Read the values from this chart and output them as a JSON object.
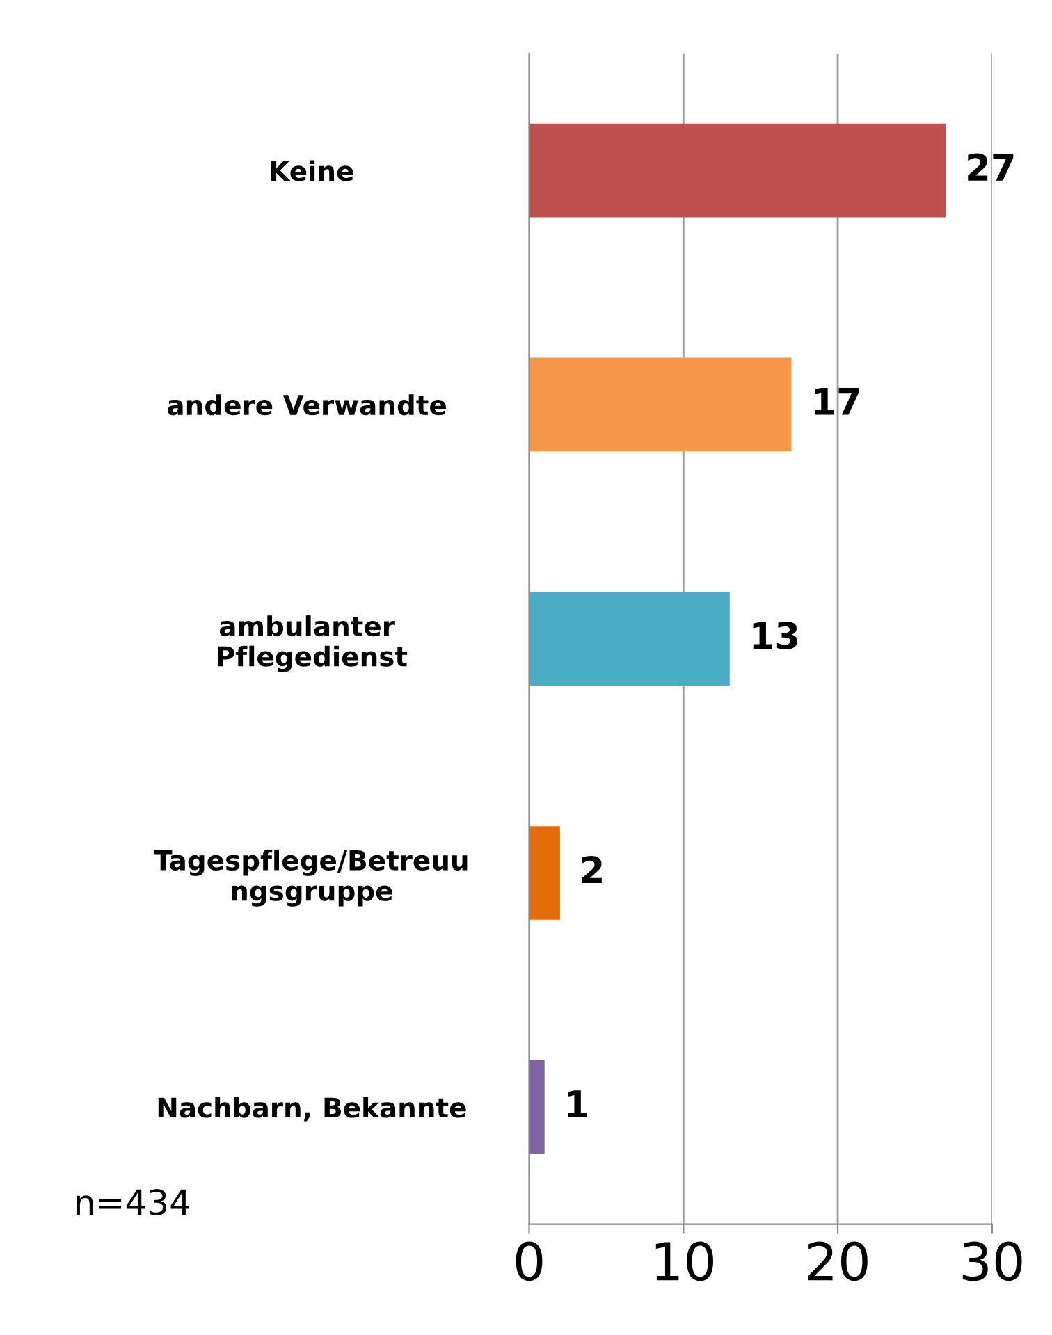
{
  "chart_data": {
    "type": "bar",
    "orientation": "horizontal",
    "categories": [
      "Keine",
      "andere Verwandte ",
      "ambulanter \nPflegedienst",
      "Tagespflege/Betreuu\nngsgruppe",
      "Nachbarn, Bekannte"
    ],
    "values": [
      27,
      17,
      13,
      2,
      1
    ],
    "colors": [
      "#c0504d",
      "#f79646",
      "#4bacc6",
      "#e46c0a",
      "#8064a2"
    ],
    "xlim": [
      0,
      30
    ],
    "xticks": [
      0,
      10,
      20,
      30
    ],
    "grid": "x",
    "data_labels": true,
    "annotations": [
      "n=434"
    ]
  }
}
